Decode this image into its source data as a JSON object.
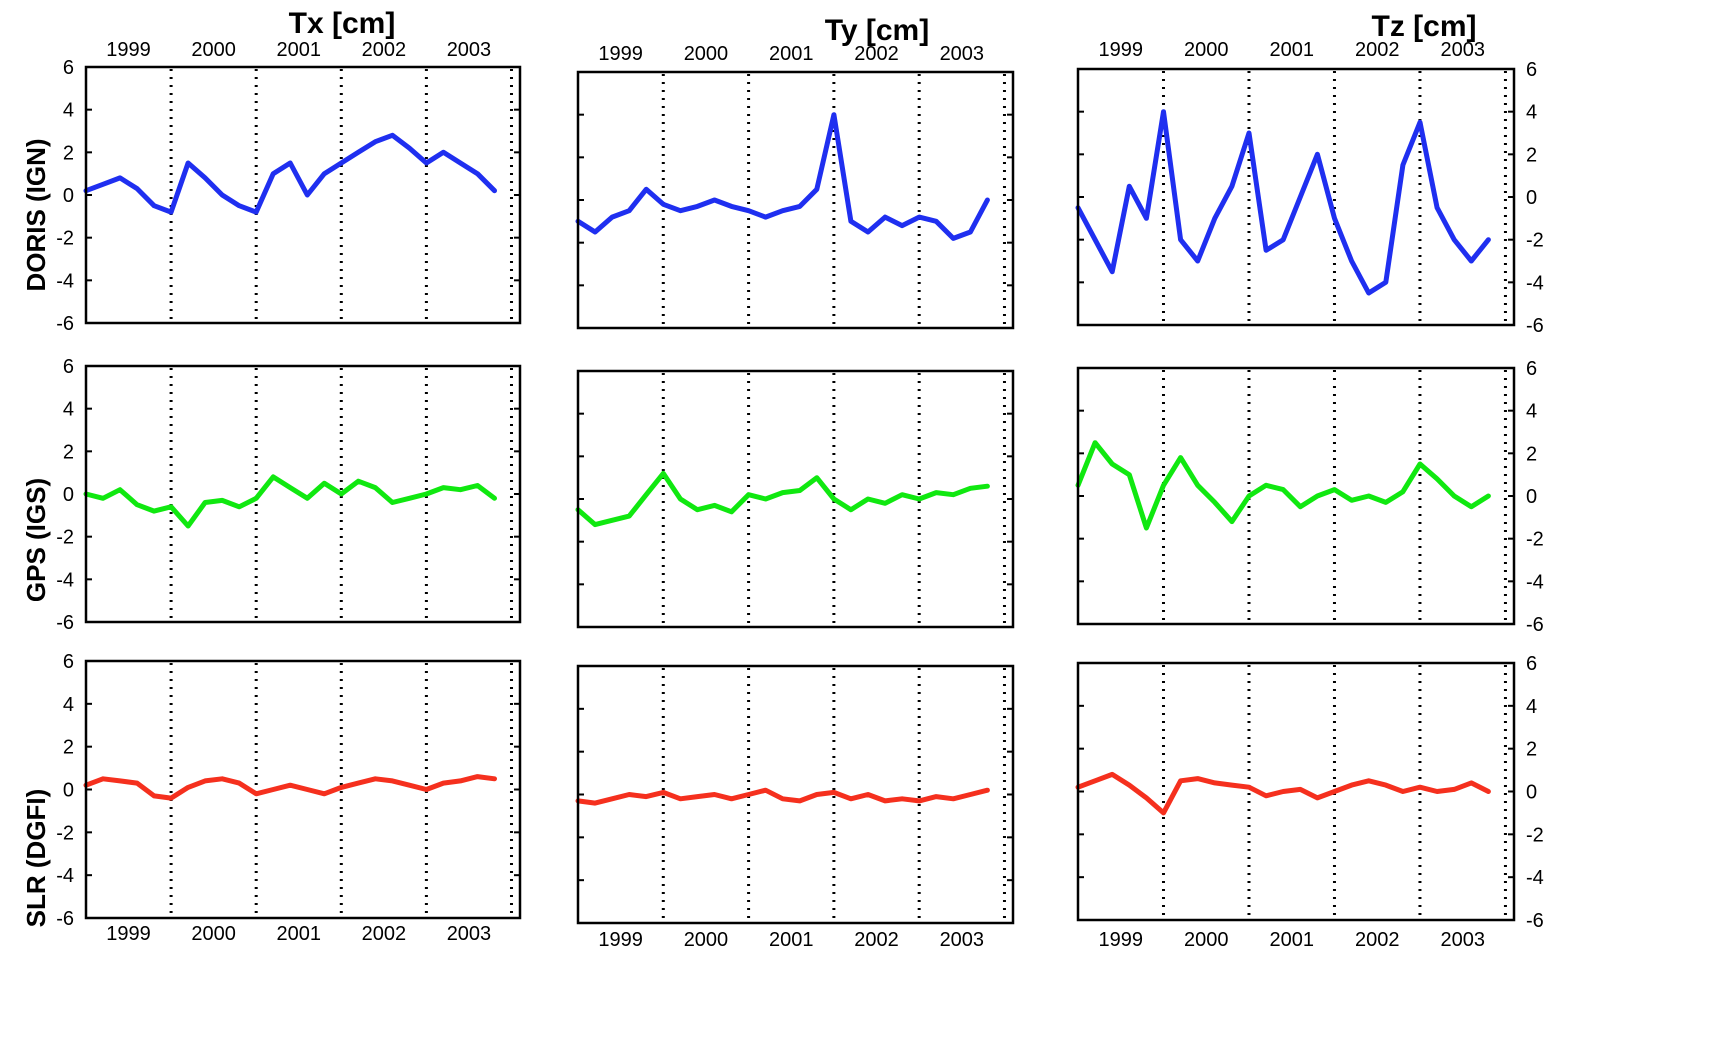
{
  "chart_data": {
    "type": "line",
    "column_titles": [
      "Tx [cm]",
      "Ty [cm]",
      "Tz [cm]"
    ],
    "row_labels": [
      "DORIS (IGN)",
      "GPS (IGS)",
      "SLR (DGFI)"
    ],
    "x_tick_labels": [
      "1999",
      "2000",
      "2001",
      "2002",
      "2003"
    ],
    "year_boundaries": [
      2000,
      2001,
      2002,
      2003,
      2004
    ],
    "xlim": [
      1999.0,
      2004.1
    ],
    "ylim": [
      -6,
      6
    ],
    "y_ticks": [
      6,
      4,
      2,
      0,
      -2,
      -4,
      -6
    ],
    "y_tick_labels": [
      "6",
      "4",
      "2",
      "0",
      "-2",
      "-4",
      "-6"
    ],
    "grid": false,
    "colors": {
      "DORIS (IGN)": "#1f2ff0",
      "GPS (IGS)": "#10e810",
      "SLR (DGFI)": "#f5301e"
    },
    "panels": [
      {
        "row": "DORIS (IGN)",
        "column": "Tx [cm]",
        "x": [
          1999.0,
          1999.2,
          1999.4,
          1999.6,
          1999.8,
          2000.0,
          2000.2,
          2000.4,
          2000.6,
          2000.8,
          2001.0,
          2001.2,
          2001.4,
          2001.6,
          2001.8,
          2002.0,
          2002.2,
          2002.4,
          2002.6,
          2002.8,
          2003.0,
          2003.2,
          2003.4,
          2003.6,
          2003.8
        ],
        "y": [
          0.2,
          0.5,
          0.8,
          0.3,
          -0.5,
          -0.8,
          1.5,
          0.8,
          0.0,
          -0.5,
          -0.8,
          1.0,
          1.5,
          0.0,
          1.0,
          1.5,
          2.0,
          2.5,
          2.8,
          2.2,
          1.5,
          2.0,
          1.5,
          1.0,
          0.2
        ]
      },
      {
        "row": "DORIS (IGN)",
        "column": "Ty [cm]",
        "x": [
          1999.0,
          1999.2,
          1999.4,
          1999.6,
          1999.8,
          2000.0,
          2000.2,
          2000.4,
          2000.6,
          2000.8,
          2001.0,
          2001.2,
          2001.4,
          2001.6,
          2001.8,
          2002.0,
          2002.2,
          2002.4,
          2002.6,
          2002.8,
          2003.0,
          2003.2,
          2003.4,
          2003.6,
          2003.8
        ],
        "y": [
          -1.0,
          -1.5,
          -0.8,
          -0.5,
          0.5,
          -0.2,
          -0.5,
          -0.3,
          0.0,
          -0.3,
          -0.5,
          -0.8,
          -0.5,
          -0.3,
          0.5,
          4.0,
          -1.0,
          -1.5,
          -0.8,
          -1.2,
          -0.8,
          -1.0,
          -1.8,
          -1.5,
          0.0
        ]
      },
      {
        "row": "DORIS (IGN)",
        "column": "Tz [cm]",
        "x": [
          1999.0,
          1999.2,
          1999.4,
          1999.6,
          1999.8,
          2000.0,
          2000.2,
          2000.4,
          2000.6,
          2000.8,
          2001.0,
          2001.2,
          2001.4,
          2001.6,
          2001.8,
          2002.0,
          2002.2,
          2002.4,
          2002.6,
          2002.8,
          2003.0,
          2003.2,
          2003.4,
          2003.6,
          2003.8
        ],
        "y": [
          -0.5,
          -2.0,
          -3.5,
          0.5,
          -1.0,
          4.0,
          -2.0,
          -3.0,
          -1.0,
          0.5,
          3.0,
          -2.5,
          -2.0,
          0.0,
          2.0,
          -1.0,
          -3.0,
          -4.5,
          -4.0,
          1.5,
          3.5,
          -0.5,
          -2.0,
          -3.0,
          -2.0
        ]
      },
      {
        "row": "GPS (IGS)",
        "column": "Tx [cm]",
        "x": [
          1999.0,
          1999.2,
          1999.4,
          1999.6,
          1999.8,
          2000.0,
          2000.2,
          2000.4,
          2000.6,
          2000.8,
          2001.0,
          2001.2,
          2001.4,
          2001.6,
          2001.8,
          2002.0,
          2002.2,
          2002.4,
          2002.6,
          2002.8,
          2003.0,
          2003.2,
          2003.4,
          2003.6,
          2003.8
        ],
        "y": [
          0.0,
          -0.2,
          0.2,
          -0.5,
          -0.8,
          -0.6,
          -1.5,
          -0.4,
          -0.3,
          -0.6,
          -0.2,
          0.8,
          0.3,
          -0.2,
          0.5,
          0.0,
          0.6,
          0.3,
          -0.4,
          -0.2,
          0.0,
          0.3,
          0.2,
          0.4,
          -0.2
        ]
      },
      {
        "row": "GPS (IGS)",
        "column": "Ty [cm]",
        "x": [
          1999.0,
          1999.2,
          1999.4,
          1999.6,
          1999.8,
          2000.0,
          2000.2,
          2000.4,
          2000.6,
          2000.8,
          2001.0,
          2001.2,
          2001.4,
          2001.6,
          2001.8,
          2002.0,
          2002.2,
          2002.4,
          2002.6,
          2002.8,
          2003.0,
          2003.2,
          2003.4,
          2003.6,
          2003.8
        ],
        "y": [
          -0.5,
          -1.2,
          -1.0,
          -0.8,
          0.2,
          1.2,
          0.0,
          -0.5,
          -0.3,
          -0.6,
          0.2,
          0.0,
          0.3,
          0.4,
          1.0,
          0.0,
          -0.5,
          0.0,
          -0.2,
          0.2,
          0.0,
          0.3,
          0.2,
          0.5,
          0.6
        ]
      },
      {
        "row": "GPS (IGS)",
        "column": "Tz [cm]",
        "x": [
          1999.0,
          1999.2,
          1999.4,
          1999.6,
          1999.8,
          2000.0,
          2000.2,
          2000.4,
          2000.6,
          2000.8,
          2001.0,
          2001.2,
          2001.4,
          2001.6,
          2001.8,
          2002.0,
          2002.2,
          2002.4,
          2002.6,
          2002.8,
          2003.0,
          2003.2,
          2003.4,
          2003.6,
          2003.8
        ],
        "y": [
          0.5,
          2.5,
          1.5,
          1.0,
          -1.5,
          0.5,
          1.8,
          0.5,
          -0.3,
          -1.2,
          0.0,
          0.5,
          0.3,
          -0.5,
          0.0,
          0.3,
          -0.2,
          0.0,
          -0.3,
          0.2,
          1.5,
          0.8,
          0.0,
          -0.5,
          0.0
        ]
      },
      {
        "row": "SLR (DGFI)",
        "column": "Tx [cm]",
        "x": [
          1999.0,
          1999.2,
          1999.4,
          1999.6,
          1999.8,
          2000.0,
          2000.2,
          2000.4,
          2000.6,
          2000.8,
          2001.0,
          2001.2,
          2001.4,
          2001.6,
          2001.8,
          2002.0,
          2002.2,
          2002.4,
          2002.6,
          2002.8,
          2003.0,
          2003.2,
          2003.4,
          2003.6,
          2003.8
        ],
        "y": [
          0.2,
          0.5,
          0.4,
          0.3,
          -0.3,
          -0.4,
          0.1,
          0.4,
          0.5,
          0.3,
          -0.2,
          0.0,
          0.2,
          0.0,
          -0.2,
          0.1,
          0.3,
          0.5,
          0.4,
          0.2,
          0.0,
          0.3,
          0.4,
          0.6,
          0.5
        ]
      },
      {
        "row": "SLR (DGFI)",
        "column": "Ty [cm]",
        "x": [
          1999.0,
          1999.2,
          1999.4,
          1999.6,
          1999.8,
          2000.0,
          2000.2,
          2000.4,
          2000.6,
          2000.8,
          2001.0,
          2001.2,
          2001.4,
          2001.6,
          2001.8,
          2002.0,
          2002.2,
          2002.4,
          2002.6,
          2002.8,
          2003.0,
          2003.2,
          2003.4,
          2003.6,
          2003.8
        ],
        "y": [
          -0.3,
          -0.4,
          -0.2,
          0.0,
          -0.1,
          0.1,
          -0.2,
          -0.1,
          0.0,
          -0.2,
          0.0,
          0.2,
          -0.2,
          -0.3,
          0.0,
          0.1,
          -0.2,
          0.0,
          -0.3,
          -0.2,
          -0.3,
          -0.1,
          -0.2,
          0.0,
          0.2
        ]
      },
      {
        "row": "SLR (DGFI)",
        "column": "Tz [cm]",
        "x": [
          1999.0,
          1999.2,
          1999.4,
          1999.6,
          1999.8,
          2000.0,
          2000.2,
          2000.4,
          2000.6,
          2000.8,
          2001.0,
          2001.2,
          2001.4,
          2001.6,
          2001.8,
          2002.0,
          2002.2,
          2002.4,
          2002.6,
          2002.8,
          2003.0,
          2003.2,
          2003.4,
          2003.6,
          2003.8
        ],
        "y": [
          0.2,
          0.5,
          0.8,
          0.3,
          -0.3,
          -1.0,
          0.5,
          0.6,
          0.4,
          0.3,
          0.2,
          -0.2,
          0.0,
          0.1,
          -0.3,
          0.0,
          0.3,
          0.5,
          0.3,
          0.0,
          0.2,
          0.0,
          0.1,
          0.4,
          0.0
        ]
      }
    ]
  }
}
